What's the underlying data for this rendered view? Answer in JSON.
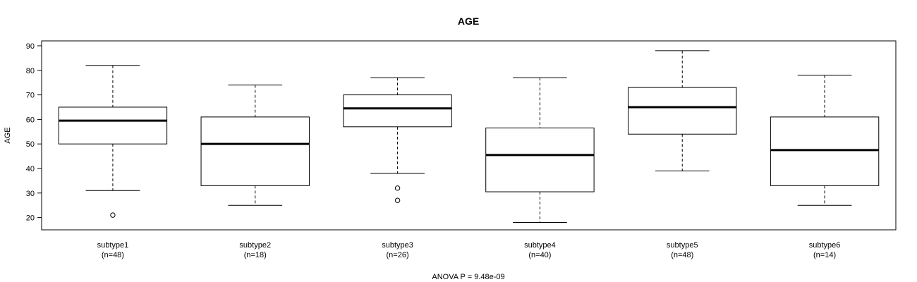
{
  "chart_data": {
    "type": "boxplot",
    "title": "AGE",
    "ylabel": "AGE",
    "xlabel": "",
    "footnote": "ANOVA P = 9.48e-09",
    "ylim": [
      15,
      92
    ],
    "yticks": [
      20,
      30,
      40,
      50,
      60,
      70,
      80,
      90
    ],
    "grid": false,
    "categories": [
      {
        "label": "subtype1",
        "n_label": "(n=48)"
      },
      {
        "label": "subtype2",
        "n_label": "(n=18)"
      },
      {
        "label": "subtype3",
        "n_label": "(n=26)"
      },
      {
        "label": "subtype4",
        "n_label": "(n=40)"
      },
      {
        "label": "subtype5",
        "n_label": "(n=48)"
      },
      {
        "label": "subtype6",
        "n_label": "(n=14)"
      }
    ],
    "boxes": [
      {
        "whisker_low": 31,
        "q1": 50,
        "median": 59.5,
        "q3": 65,
        "whisker_high": 82,
        "outliers": [
          21
        ]
      },
      {
        "whisker_low": 25,
        "q1": 33,
        "median": 50,
        "q3": 61,
        "whisker_high": 74,
        "outliers": []
      },
      {
        "whisker_low": 38,
        "q1": 57,
        "median": 64.5,
        "q3": 70,
        "whisker_high": 77,
        "outliers": [
          32,
          27
        ]
      },
      {
        "whisker_low": 18,
        "q1": 30.5,
        "median": 45.5,
        "q3": 56.5,
        "whisker_high": 77,
        "outliers": []
      },
      {
        "whisker_low": 39,
        "q1": 54,
        "median": 65,
        "q3": 73,
        "whisker_high": 88,
        "outliers": []
      },
      {
        "whisker_low": 25,
        "q1": 33,
        "median": 47.5,
        "q3": 61,
        "whisker_high": 78,
        "outliers": []
      }
    ]
  }
}
